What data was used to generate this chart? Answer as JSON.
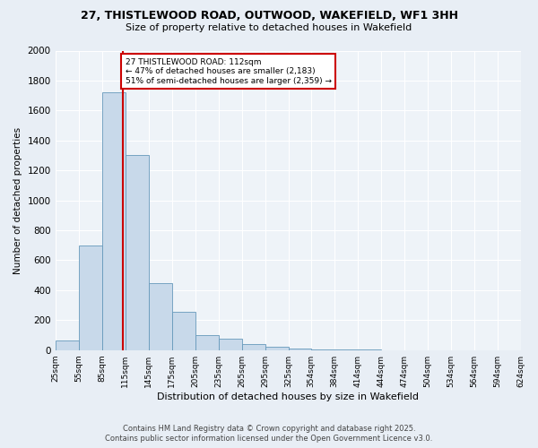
{
  "title_line1": "27, THISTLEWOOD ROAD, OUTWOOD, WAKEFIELD, WF1 3HH",
  "title_line2": "Size of property relative to detached houses in Wakefield",
  "xlabel": "Distribution of detached houses by size in Wakefield",
  "ylabel": "Number of detached properties",
  "bin_edges": [
    25,
    55,
    85,
    115,
    145,
    175,
    205,
    235,
    265,
    295,
    325,
    354,
    384,
    414,
    444,
    474,
    504,
    534,
    564,
    594,
    624
  ],
  "bar_heights": [
    65,
    700,
    1720,
    1300,
    450,
    255,
    100,
    75,
    40,
    25,
    10,
    5,
    3,
    2,
    1,
    1,
    0,
    0,
    0,
    0
  ],
  "bar_color": "#c8d9ea",
  "bar_edge_color": "#6699bb",
  "property_size": 112,
  "red_line_color": "#cc0000",
  "annotation_text": "27 THISTLEWOOD ROAD: 112sqm\n← 47% of detached houses are smaller (2,183)\n51% of semi-detached houses are larger (2,359) →",
  "annotation_box_color": "#ffffff",
  "annotation_edge_color": "#cc0000",
  "ylim": [
    0,
    2000
  ],
  "yticks": [
    0,
    200,
    400,
    600,
    800,
    1000,
    1200,
    1400,
    1600,
    1800,
    2000
  ],
  "bg_color": "#e8eef5",
  "plot_bg_color": "#eef3f8",
  "grid_color": "#ffffff",
  "tick_labels": [
    "25sqm",
    "55sqm",
    "85sqm",
    "115sqm",
    "145sqm",
    "175sqm",
    "205sqm",
    "235sqm",
    "265sqm",
    "295sqm",
    "325sqm",
    "354sqm",
    "384sqm",
    "414sqm",
    "444sqm",
    "474sqm",
    "504sqm",
    "534sqm",
    "564sqm",
    "594sqm",
    "624sqm"
  ],
  "footer_line1": "Contains HM Land Registry data © Crown copyright and database right 2025.",
  "footer_line2": "Contains public sector information licensed under the Open Government Licence v3.0."
}
